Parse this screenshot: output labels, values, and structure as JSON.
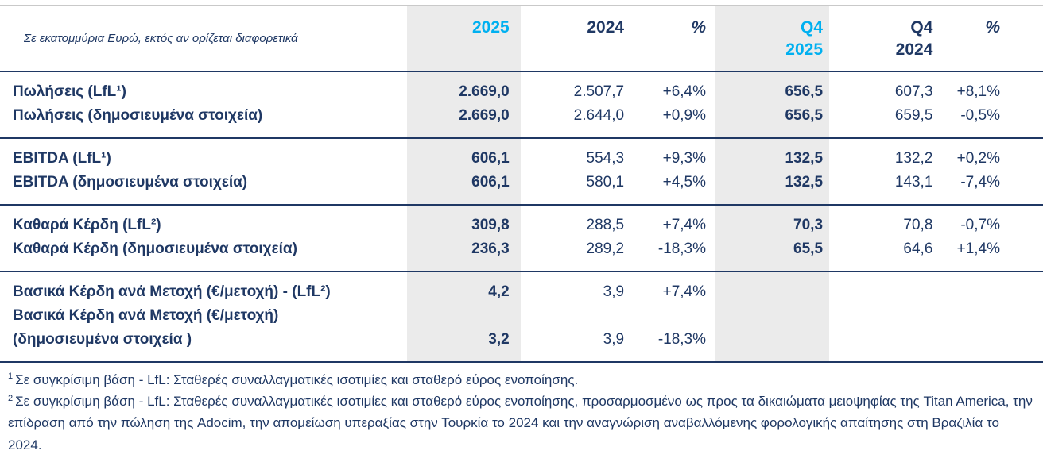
{
  "colors": {
    "navy": "#1f3864",
    "cyan": "#00b0f0",
    "band": "#ebebeb",
    "topline": "#c9c9c9"
  },
  "table": {
    "unit_note": "Σε εκατομμύρια Ευρώ, εκτός αν ορίζεται διαφορετικά",
    "header": {
      "fy_2025": "2025",
      "fy_2024": "2024",
      "fy_pct": "%",
      "q4_2025_top": "Q4",
      "q4_2024_top": "Q4",
      "q4_pct": "%",
      "q4_2025_sub": "2025",
      "q4_2024_sub": "2024"
    },
    "groups": [
      {
        "rows": [
          {
            "label": "Πωλήσεις (LfL¹)",
            "values": [
              "2.669,0",
              "2.507,7",
              "+6,4%",
              "656,5",
              "607,3",
              "+8,1%"
            ]
          },
          {
            "label": "Πωλήσεις (δημοσιευμένα στοιχεία)",
            "values": [
              "2.669,0",
              "2.644,0",
              "+0,9%",
              "656,5",
              "659,5",
              "-0,5%"
            ]
          }
        ]
      },
      {
        "rows": [
          {
            "label": "EBITDA (LfL¹)",
            "values": [
              "606,1",
              "554,3",
              "+9,3%",
              "132,5",
              "132,2",
              "+0,2%"
            ]
          },
          {
            "label": "EBITDA (δημοσιευμένα στοιχεία)",
            "values": [
              "606,1",
              "580,1",
              "+4,5%",
              "132,5",
              "143,1",
              "-7,4%"
            ]
          }
        ]
      },
      {
        "rows": [
          {
            "label": "Καθαρά Κέρδη (LfL²)",
            "values": [
              "309,8",
              "288,5",
              "+7,4%",
              "70,3",
              "70,8",
              "-0,7%"
            ]
          },
          {
            "label": "Καθαρά Κέρδη (δημοσιευμένα στοιχεία)",
            "values": [
              "236,3",
              "289,2",
              "-18,3%",
              "65,5",
              "64,6",
              "+1,4%"
            ]
          }
        ]
      },
      {
        "rows": [
          {
            "label": "Βασικά Κέρδη ανά Μετοχή (€/μετοχή) - (LfL²)",
            "values": [
              "4,2",
              "3,9",
              "+7,4%",
              "",
              "",
              ""
            ]
          },
          {
            "label": "Βασικά Κέρδη ανά Μετοχή (€/μετοχή)",
            "values": [
              "",
              "",
              "",
              "",
              "",
              ""
            ]
          },
          {
            "label": "(δημοσιευμένα στοιχεία )",
            "values": [
              "3,2",
              "3,9",
              "-18,3%",
              "",
              "",
              ""
            ]
          }
        ]
      }
    ]
  },
  "footnotes": [
    {
      "marker": "1",
      "text": "Σε συγκρίσιμη βάση - LfL: Σταθερές συναλλαγματικές ισοτιμίες και σταθερό εύρος ενοποίησης."
    },
    {
      "marker": "2",
      "text": "Σε συγκρίσιμη βάση - LfL: Σταθερές συναλλαγματικές ισοτιμίες και σταθερό εύρος ενοποίησης, προσαρμοσμένο ως προς τα δικαιώματα μειοψηφίας της Titan America, την επίδραση από την πώληση της Adocim, την απομείωση υπεραξίας στην Τουρκία το 2024 και την αναγνώριση αναβαλλόμενης φορολογικής απαίτησης στη Βραζιλία το 2024."
    }
  ]
}
